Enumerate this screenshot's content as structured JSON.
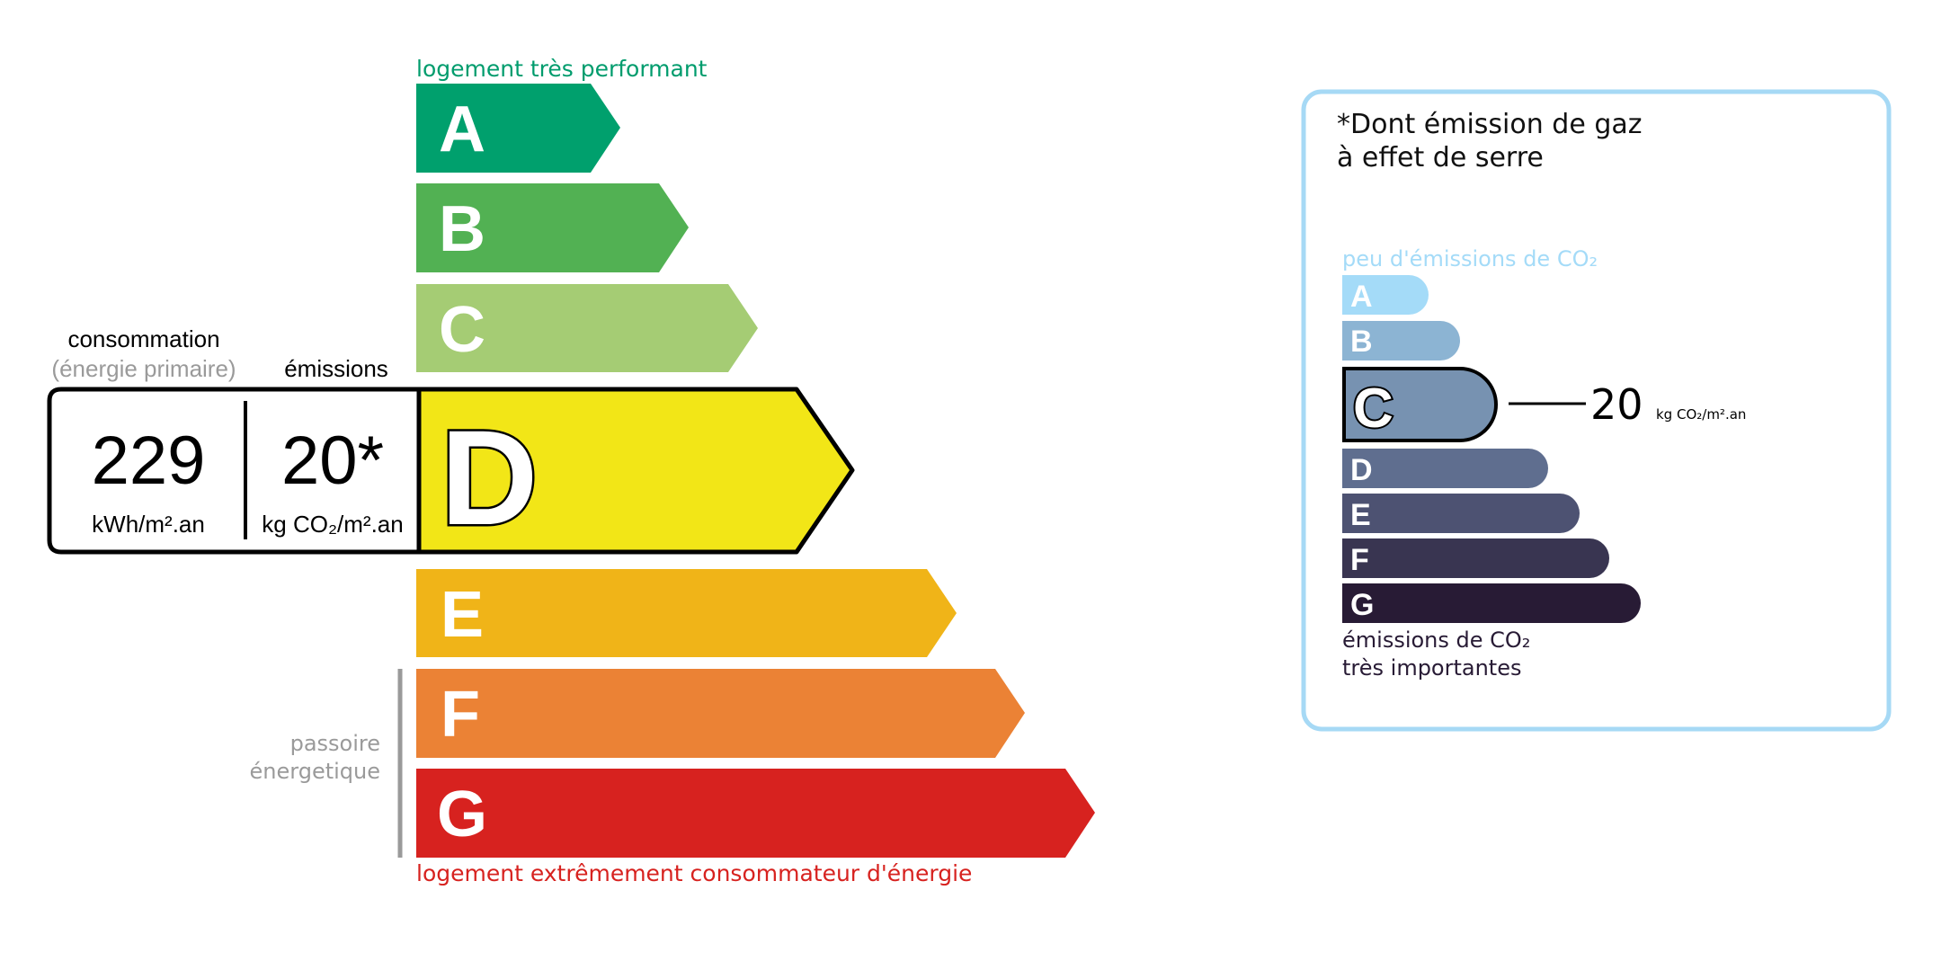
{
  "energy": {
    "top_label": "logement très performant",
    "bottom_label": "logement extrêmement consommateur d'énergie",
    "top_label_color": "#009c6d",
    "bottom_label_color": "#d7221f",
    "passoire_line1": "passoire",
    "passoire_line2": "énergetique",
    "classes": [
      {
        "letter": "A",
        "color": "#00a06d"
      },
      {
        "letter": "B",
        "color": "#52b153"
      },
      {
        "letter": "C",
        "color": "#a5cc74"
      },
      {
        "letter": "D",
        "color": "#f2e617"
      },
      {
        "letter": "E",
        "color": "#f0b418"
      },
      {
        "letter": "F",
        "color": "#eb8235"
      },
      {
        "letter": "G",
        "color": "#d7221f"
      }
    ],
    "current_class": "D",
    "consumption_label": "consommation",
    "consumption_sublabel": "(énergie primaire)",
    "emissions_label": "émissions",
    "consumption_value": "229",
    "consumption_unit": "kWh/m².an",
    "emissions_value": "20*",
    "emissions_unit": "kg CO₂/m².an"
  },
  "climate": {
    "title_line1": "*Dont émission de gaz",
    "title_line2": "à effet de serre",
    "top_label": "peu d'émissions de CO₂",
    "bottom_label_line1": "émissions de CO₂",
    "bottom_label_line2": "très importantes",
    "border_color": "#a6d9f5",
    "classes": [
      {
        "letter": "A",
        "color": "#a4dbf8"
      },
      {
        "letter": "B",
        "color": "#8cb4d3"
      },
      {
        "letter": "C",
        "color": "#7792b1"
      },
      {
        "letter": "D",
        "color": "#5f6e8f"
      },
      {
        "letter": "E",
        "color": "#4d5272"
      },
      {
        "letter": "F",
        "color": "#393551"
      },
      {
        "letter": "G",
        "color": "#281b35"
      }
    ],
    "current_class": "C",
    "value": "20",
    "unit": "kg CO₂/m².an"
  }
}
